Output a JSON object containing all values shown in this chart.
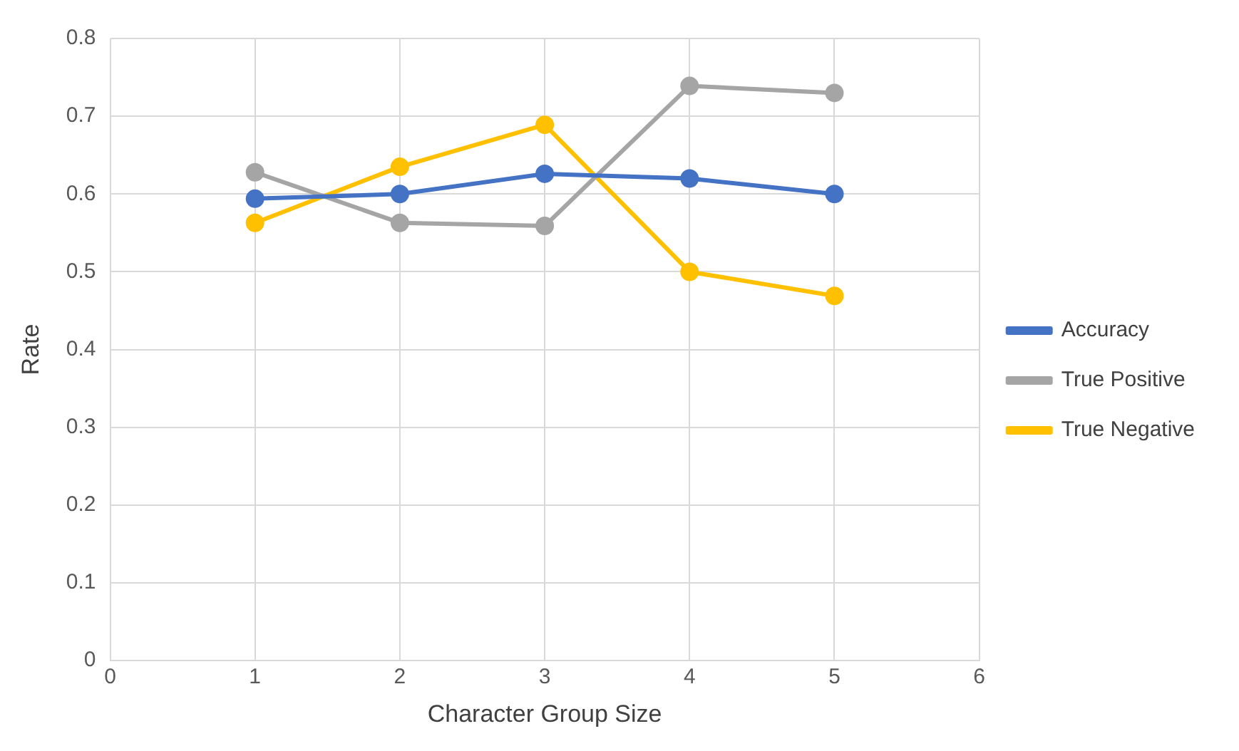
{
  "chart_data": {
    "type": "line",
    "xlabel": "Character Group Size",
    "ylabel": "Rate",
    "x": [
      1,
      2,
      3,
      4,
      5
    ],
    "series": [
      {
        "name": "Accuracy",
        "color": "#4472c4",
        "values": [
          0.594,
          0.6,
          0.626,
          0.62,
          0.6
        ]
      },
      {
        "name": "True Positive",
        "color": "#a5a5a5",
        "values": [
          0.628,
          0.563,
          0.559,
          0.739,
          0.73
        ]
      },
      {
        "name": "True Negative",
        "color": "#ffc000",
        "values": [
          0.563,
          0.635,
          0.689,
          0.5,
          0.469
        ]
      }
    ],
    "xlim": [
      0,
      6
    ],
    "xticks": [
      0,
      1,
      2,
      3,
      4,
      5,
      6
    ],
    "ylim": [
      0,
      0.8
    ],
    "yticks": [
      0,
      0.1,
      0.2,
      0.3,
      0.4,
      0.5,
      0.6,
      0.7,
      0.8
    ],
    "grid": true,
    "legend": "right",
    "marker": "circle",
    "line_style": "solid"
  }
}
